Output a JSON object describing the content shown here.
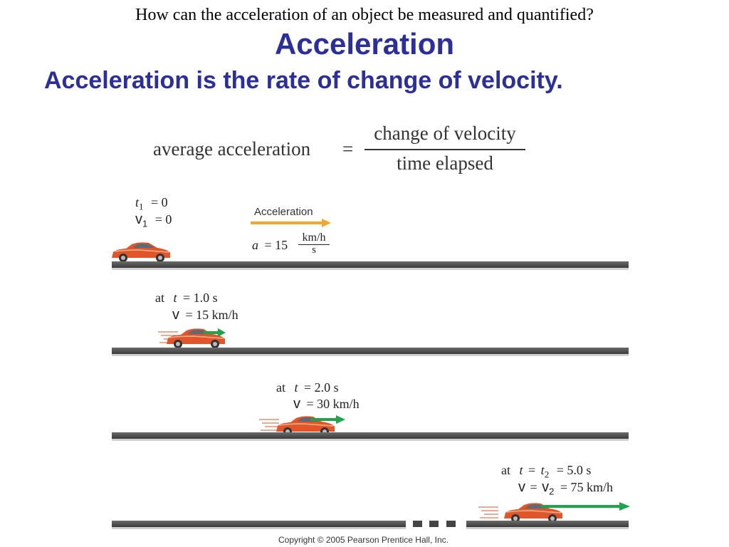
{
  "slide": {
    "question": "How can the acceleration of an object be measured and quantified?",
    "title": "Acceleration",
    "subtitle": "Acceleration is the rate of change of velocity."
  },
  "formula": {
    "lhs": "average acceleration",
    "equals": "=",
    "numerator": "change of velocity",
    "denominator": "time elapsed"
  },
  "panel1": {
    "t_label": "t",
    "t_sub": "1",
    "t_value": "= 0",
    "v_label": "v",
    "v_sub": "1",
    "v_value": "= 0",
    "arrow_label": "Acceleration",
    "a_label": "a",
    "a_value": "= 15",
    "a_unit_num": "km/h",
    "a_unit_den": "s"
  },
  "panel2": {
    "at": "at",
    "t": "t",
    "t_value": "= 1.0 s",
    "v": "v",
    "v_value": "= 15 km/h"
  },
  "panel3": {
    "at": "at",
    "t": "t",
    "t_value": "= 2.0 s",
    "v": "v",
    "v_value": "= 30 km/h"
  },
  "panel4": {
    "at": "at",
    "t": "t",
    "eq1": "=",
    "t2": "t",
    "t2_sub": "2",
    "t_value": "= 5.0 s",
    "v": "v",
    "eq2": "=",
    "v2": "v",
    "v2_sub": "2",
    "v_value": "= 75 km/h"
  },
  "copyright": "Copyright © 2005 Pearson Prentice Hall, Inc.",
  "colors": {
    "title_blue": "#2b2e9e",
    "accel_arrow": "#f0a830",
    "velocity_arrow": "#1fa44a",
    "car_body": "#e2552a"
  }
}
